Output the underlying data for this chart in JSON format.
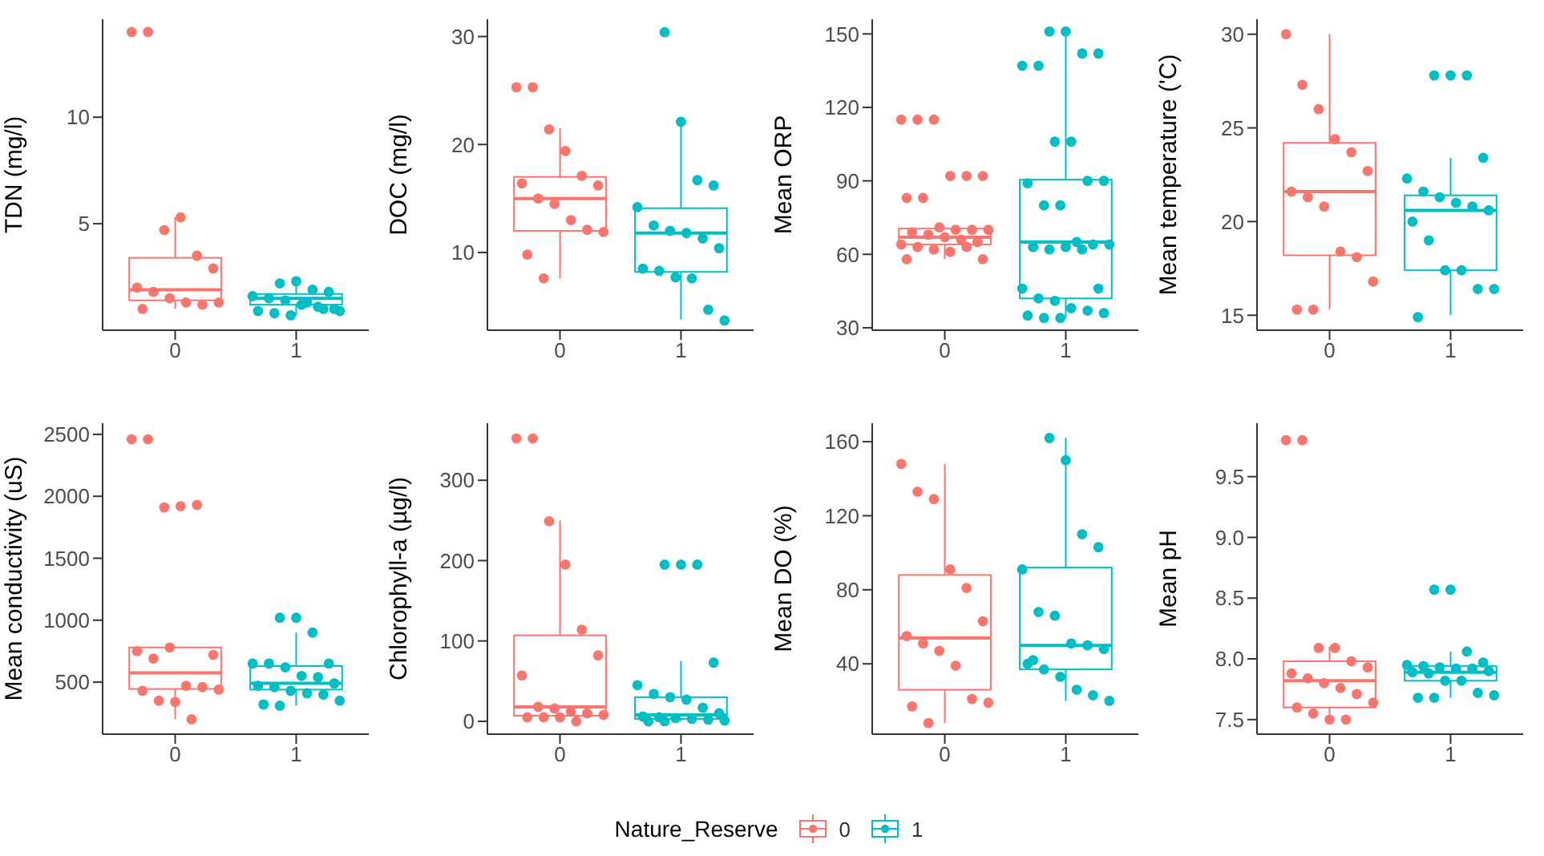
{
  "chart_data": [
    {
      "type": "box",
      "ylabel": "TDN (mg/l)",
      "categories": [
        "0",
        "1"
      ],
      "colors": [
        "#f8766d",
        "#00bfc4"
      ],
      "ylim": [
        0,
        14.6
      ],
      "yticks": [
        5,
        10
      ],
      "legend": "bottom",
      "legend_title": "Nature_Reserve",
      "boxes": [
        {
          "low": 1.0,
          "q1": 1.4,
          "median": 1.9,
          "q3": 3.4,
          "high": 5.3
        },
        {
          "low": 0.7,
          "q1": 1.2,
          "median": 1.5,
          "q3": 1.7,
          "high": 2.3
        }
      ],
      "series": [
        {
          "type": "scatter",
          "name": "0",
          "color": "#f8766d",
          "x": [
            "0",
            "0",
            "0",
            "0",
            "0",
            "0",
            "0",
            "0",
            "0",
            "0",
            "0",
            "0",
            "0"
          ],
          "values": [
            14,
            14,
            4.7,
            5.3,
            3.5,
            2.9,
            2.0,
            1.8,
            1.5,
            1.3,
            1.2,
            1.3,
            1.0
          ]
        },
        {
          "type": "scatter",
          "name": "1",
          "color": "#00bfc4",
          "x": [
            "1",
            "1",
            "1",
            "1",
            "1",
            "1",
            "1",
            "1",
            "1",
            "1",
            "1",
            "1",
            "1",
            "1",
            "1",
            "1"
          ],
          "values": [
            2.2,
            2.3,
            1.9,
            1.8,
            1.6,
            1.5,
            1.4,
            1.2,
            1.1,
            1.0,
            0.9,
            0.8,
            0.7,
            1.3,
            1.0,
            0.9
          ]
        }
      ]
    },
    {
      "type": "box",
      "ylabel": "DOC (mg/l)",
      "categories": [
        "0",
        "1"
      ],
      "colors": [
        "#f8766d",
        "#00bfc4"
      ],
      "ylim": [
        2.8,
        31.6
      ],
      "yticks": [
        10,
        20,
        30
      ],
      "boxes": [
        {
          "low": 7.6,
          "q1": 12,
          "median": 15,
          "q3": 17,
          "high": 21.5
        },
        {
          "low": 3.8,
          "q1": 8.2,
          "median": 11.8,
          "q3": 14.1,
          "high": 22.2
        }
      ],
      "series": [
        {
          "type": "scatter",
          "name": "0",
          "color": "#f8766d",
          "x": [
            "0",
            "0",
            "0",
            "0",
            "0",
            "0",
            "0",
            "0",
            "0",
            "0",
            "0",
            "0",
            "0",
            "0"
          ],
          "values": [
            25.3,
            25.3,
            21.4,
            19.4,
            17.1,
            16.2,
            16.4,
            15.0,
            14.5,
            13.0,
            12.1,
            11.9,
            9.8,
            7.6
          ]
        },
        {
          "type": "scatter",
          "name": "1",
          "color": "#00bfc4",
          "x": [
            "1",
            "1",
            "1",
            "1",
            "1",
            "1",
            "1",
            "1",
            "1",
            "1",
            "1",
            "1",
            "1",
            "1",
            "1",
            "1"
          ],
          "values": [
            30.4,
            22.1,
            16.7,
            16.2,
            14.2,
            12.5,
            12.0,
            11.8,
            11.3,
            10.4,
            8.5,
            8.3,
            7.7,
            7.6,
            4.7,
            3.7
          ]
        }
      ]
    },
    {
      "type": "box",
      "ylabel": "Mean ORP",
      "categories": [
        "0",
        "1"
      ],
      "colors": [
        "#f8766d",
        "#00bfc4"
      ],
      "ylim": [
        29,
        156
      ],
      "yticks": [
        30,
        60,
        90,
        120,
        150
      ],
      "boxes": [
        {
          "low": 58,
          "q1": 64,
          "median": 67,
          "q3": 70.5,
          "high": 71
        },
        {
          "low": 34,
          "q1": 42,
          "median": 65,
          "q3": 90.5,
          "high": 151
        }
      ],
      "series": [
        {
          "type": "scatter",
          "name": "0",
          "color": "#f8766d",
          "x": [
            "0",
            "0",
            "0",
            "0",
            "0",
            "0",
            "0",
            "0",
            "0",
            "0",
            "0",
            "0",
            "0",
            "0",
            "0",
            "0",
            "0",
            "0",
            "0",
            "0",
            "0",
            "0",
            "0",
            "0"
          ],
          "values": [
            115,
            115,
            115,
            92,
            92,
            92,
            83,
            83,
            71,
            70,
            70,
            70,
            69,
            68,
            67,
            66,
            65,
            64,
            63,
            62,
            61,
            63,
            58,
            58
          ]
        },
        {
          "type": "scatter",
          "name": "1",
          "color": "#00bfc4",
          "x": [
            "1",
            "1",
            "1",
            "1",
            "1",
            "1",
            "1",
            "1",
            "1",
            "1",
            "1",
            "1",
            "1",
            "1",
            "1",
            "1",
            "1",
            "1",
            "1",
            "1",
            "1",
            "1",
            "1",
            "1",
            "1",
            "1",
            "1",
            "1",
            "1",
            "1"
          ],
          "values": [
            151,
            151,
            142,
            142,
            137,
            137,
            106,
            106,
            90,
            90,
            89,
            80,
            80,
            65,
            64,
            64,
            63,
            62,
            63,
            62,
            46,
            46,
            42,
            41,
            38,
            37,
            36,
            35,
            34,
            34
          ]
        }
      ]
    },
    {
      "type": "box",
      "ylabel": "Mean temperature ('C)",
      "categories": [
        "0",
        "1"
      ],
      "colors": [
        "#f8766d",
        "#00bfc4"
      ],
      "ylim": [
        14.2,
        30.8
      ],
      "yticks": [
        15,
        20,
        25,
        30
      ],
      "boxes": [
        {
          "low": 15.3,
          "q1": 18.2,
          "median": 21.6,
          "q3": 24.2,
          "high": 30
        },
        {
          "low": 15,
          "q1": 17.4,
          "median": 20.6,
          "q3": 21.4,
          "high": 23.4
        }
      ],
      "series": [
        {
          "type": "scatter",
          "name": "0",
          "color": "#f8766d",
          "x": [
            "0",
            "0",
            "0",
            "0",
            "0",
            "0",
            "0",
            "0",
            "0",
            "0",
            "0",
            "0",
            "0",
            "0"
          ],
          "values": [
            30,
            27.3,
            26.0,
            24.4,
            23.7,
            22.7,
            21.6,
            21.3,
            20.8,
            18.4,
            18.1,
            16.8,
            15.3,
            15.3
          ]
        },
        {
          "type": "scatter",
          "name": "1",
          "color": "#00bfc4",
          "x": [
            "1",
            "1",
            "1",
            "1",
            "1",
            "1",
            "1",
            "1",
            "1",
            "1",
            "1",
            "1",
            "1",
            "1",
            "1",
            "1",
            "1"
          ],
          "values": [
            27.8,
            27.8,
            27.8,
            23.4,
            22.3,
            21.6,
            21.3,
            21.0,
            20.8,
            20.6,
            20.0,
            19.0,
            17.4,
            17.4,
            16.4,
            16.4,
            14.9
          ]
        }
      ]
    },
    {
      "type": "box",
      "ylabel": "Mean conductivity (uS)",
      "categories": [
        "0",
        "1"
      ],
      "colors": [
        "#f8766d",
        "#00bfc4"
      ],
      "ylim": [
        80,
        2590
      ],
      "yticks": [
        500,
        1000,
        1500,
        2000,
        2500
      ],
      "boxes": [
        {
          "low": 200,
          "q1": 445,
          "median": 575,
          "q3": 780,
          "high": 780
        },
        {
          "low": 310,
          "q1": 440,
          "median": 490,
          "q3": 630,
          "high": 900
        }
      ],
      "series": [
        {
          "type": "scatter",
          "name": "0",
          "color": "#f8766d",
          "x": [
            "0",
            "0",
            "0",
            "0",
            "0",
            "0",
            "0",
            "0",
            "0",
            "0",
            "0",
            "0",
            "0",
            "0",
            "0",
            "0"
          ],
          "values": [
            2460,
            2460,
            1910,
            1920,
            1930,
            720,
            750,
            690,
            780,
            470,
            460,
            440,
            430,
            350,
            340,
            200
          ]
        },
        {
          "type": "scatter",
          "name": "1",
          "color": "#00bfc4",
          "x": [
            "1",
            "1",
            "1",
            "1",
            "1",
            "1",
            "1",
            "1",
            "1",
            "1",
            "1",
            "1",
            "1",
            "1",
            "1",
            "1",
            "1",
            "1"
          ],
          "values": [
            1020,
            1020,
            900,
            650,
            650,
            650,
            620,
            550,
            540,
            490,
            470,
            460,
            430,
            410,
            400,
            350,
            320,
            310
          ]
        }
      ]
    },
    {
      "type": "box",
      "ylabel": "Chlorophyll-a (µg/l)",
      "categories": [
        "0",
        "1"
      ],
      "colors": [
        "#f8766d",
        "#00bfc4"
      ],
      "ylim": [
        -16,
        371
      ],
      "yticks": [
        0,
        100,
        200,
        300
      ],
      "boxes": [
        {
          "low": 0,
          "q1": 7,
          "median": 18,
          "q3": 107,
          "high": 250
        },
        {
          "low": 0,
          "q1": 3,
          "median": 8,
          "q3": 30,
          "high": 75
        }
      ],
      "series": [
        {
          "type": "scatter",
          "name": "0",
          "color": "#f8766d",
          "x": [
            "0",
            "0",
            "0",
            "0",
            "0",
            "0",
            "0",
            "0",
            "0",
            "0",
            "0",
            "0",
            "0",
            "0",
            "0",
            "0"
          ],
          "values": [
            352,
            352,
            249,
            195,
            114,
            82,
            57,
            18,
            16,
            12,
            10,
            8,
            5,
            5,
            5,
            0
          ]
        },
        {
          "type": "scatter",
          "name": "1",
          "color": "#00bfc4",
          "x": [
            "1",
            "1",
            "1",
            "1",
            "1",
            "1",
            "1",
            "1",
            "1",
            "1",
            "1",
            "1",
            "1",
            "1",
            "1",
            "1",
            "1",
            "1"
          ],
          "values": [
            195,
            195,
            195,
            73,
            45,
            34,
            30,
            27,
            17,
            10,
            6,
            5,
            4,
            3,
            2,
            1,
            0,
            0
          ]
        }
      ]
    },
    {
      "type": "box",
      "ylabel": "Mean DO (%)",
      "categories": [
        "0",
        "1"
      ],
      "colors": [
        "#f8766d",
        "#00bfc4"
      ],
      "ylim": [
        2,
        170
      ],
      "yticks": [
        40,
        80,
        120,
        160
      ],
      "boxes": [
        {
          "low": 8,
          "q1": 26,
          "median": 54,
          "q3": 88,
          "high": 148
        },
        {
          "low": 20,
          "q1": 37,
          "median": 50,
          "q3": 92,
          "high": 162
        }
      ],
      "series": [
        {
          "type": "scatter",
          "name": "0",
          "color": "#f8766d",
          "x": [
            "0",
            "0",
            "0",
            "0",
            "0",
            "0",
            "0",
            "0",
            "0",
            "0",
            "0",
            "0",
            "0",
            "0"
          ],
          "values": [
            148,
            133,
            129,
            91,
            81,
            63,
            55,
            51,
            47,
            39,
            21,
            19,
            17,
            8
          ]
        },
        {
          "type": "scatter",
          "name": "1",
          "color": "#00bfc4",
          "x": [
            "1",
            "1",
            "1",
            "1",
            "1",
            "1",
            "1",
            "1",
            "1",
            "1",
            "1",
            "1",
            "1",
            "1",
            "1",
            "1",
            "1"
          ],
          "values": [
            162,
            150,
            110,
            103,
            91,
            68,
            66,
            51,
            50,
            48,
            40,
            37,
            33,
            26,
            23,
            20,
            42
          ]
        }
      ]
    },
    {
      "type": "box",
      "ylabel": "Mean pH",
      "categories": [
        "0",
        "1"
      ],
      "colors": [
        "#f8766d",
        "#00bfc4"
      ],
      "ylim": [
        7.38,
        9.94
      ],
      "yticks": [
        7.5,
        {
          "value": 8,
          "label": "8.0"
        },
        8.5,
        {
          "value": 9,
          "label": "9.0"
        },
        9.5
      ],
      "boxes": [
        {
          "low": 7.5,
          "q1": 7.6,
          "median": 7.82,
          "q3": 7.98,
          "high": 8.1
        },
        {
          "low": 7.68,
          "q1": 7.82,
          "median": 7.89,
          "q3": 7.94,
          "high": 8.06
        }
      ],
      "series": [
        {
          "type": "scatter",
          "name": "0",
          "color": "#f8766d",
          "x": [
            "0",
            "0",
            "0",
            "0",
            "0",
            "0",
            "0",
            "0",
            "0",
            "0",
            "0",
            "0",
            "0",
            "0",
            "0",
            "0"
          ],
          "values": [
            9.8,
            9.8,
            8.09,
            8.09,
            7.98,
            7.93,
            7.88,
            7.84,
            7.8,
            7.76,
            7.71,
            7.64,
            7.6,
            7.55,
            7.5,
            7.5
          ]
        },
        {
          "type": "scatter",
          "name": "1",
          "color": "#00bfc4",
          "x": [
            "1",
            "1",
            "1",
            "1",
            "1",
            "1",
            "1",
            "1",
            "1",
            "1",
            "1",
            "1",
            "1",
            "1",
            "1",
            "1",
            "1",
            "1"
          ],
          "values": [
            8.57,
            8.57,
            8.06,
            7.97,
            7.95,
            7.94,
            7.93,
            7.92,
            7.92,
            7.9,
            7.89,
            7.88,
            7.82,
            7.82,
            7.72,
            7.7,
            7.68,
            7.68
          ]
        }
      ]
    }
  ]
}
